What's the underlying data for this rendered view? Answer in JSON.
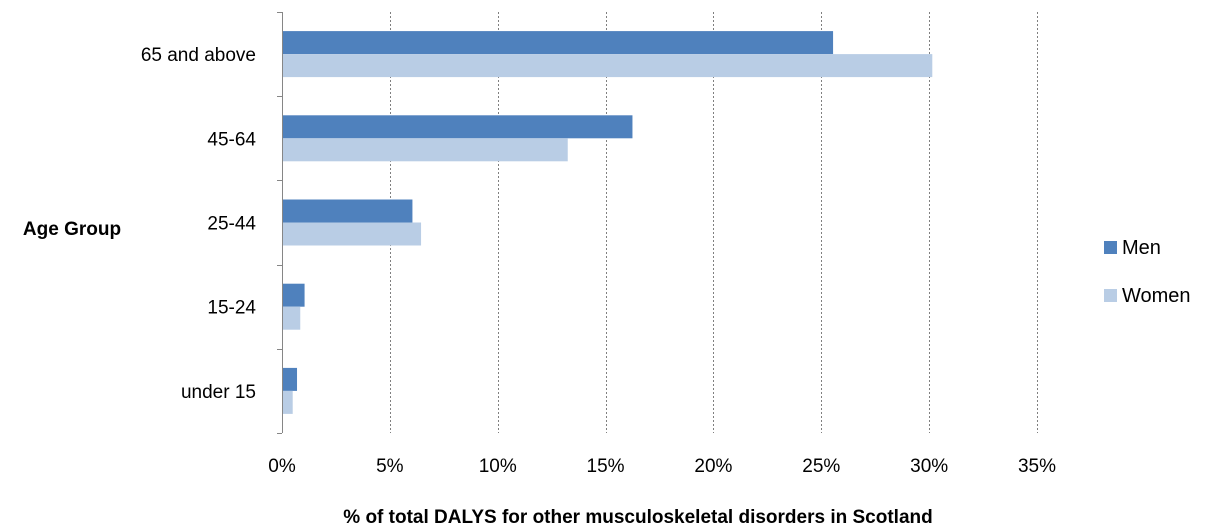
{
  "chart_data": {
    "type": "bar",
    "orientation": "horizontal",
    "categories": [
      "65 and above",
      "45-64",
      "25-44",
      "15-24",
      "under 15"
    ],
    "series": [
      {
        "name": "Men",
        "color": "#4f81bd",
        "values": [
          25.5,
          16.2,
          6.0,
          1.0,
          0.65
        ]
      },
      {
        "name": "Women",
        "color": "#b9cde5",
        "values": [
          30.1,
          13.2,
          6.4,
          0.8,
          0.45
        ]
      }
    ],
    "x_ticks": [
      "0%",
      "5%",
      "10%",
      "15%",
      "20%",
      "25%",
      "30%",
      "35%"
    ],
    "xlim": [
      0,
      35
    ],
    "xlabel": "% of total DALYS for other musculoskeletal disorders in Scotland",
    "ylabel": "Age Group",
    "grid": "vertical dotted",
    "legend": "right"
  }
}
